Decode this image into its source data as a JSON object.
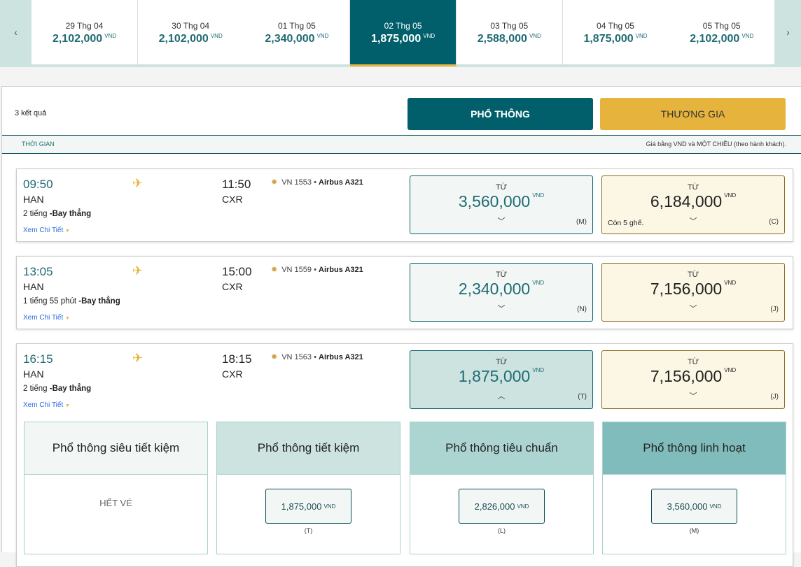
{
  "date_strip": {
    "prev_label": "‹",
    "next_label": "›",
    "dates": [
      {
        "date": "29 Thg 04",
        "price": "2,102,000",
        "currency": "VND"
      },
      {
        "date": "30 Thg 04",
        "price": "2,102,000",
        "currency": "VND"
      },
      {
        "date": "01 Thg 05",
        "price": "2,340,000",
        "currency": "VND"
      },
      {
        "date": "02 Thg 05",
        "price": "1,875,000",
        "currency": "VND",
        "selected": true
      },
      {
        "date": "03 Thg 05",
        "price": "2,588,000",
        "currency": "VND"
      },
      {
        "date": "04 Thg 05",
        "price": "1,875,000",
        "currency": "VND"
      },
      {
        "date": "05 Thg 05",
        "price": "2,102,000",
        "currency": "VND"
      }
    ]
  },
  "results": {
    "count_label": "3 kết quả",
    "economy_button": "PHỔ THÔNG",
    "business_button": "THƯƠNG GIA",
    "time_header": "THỜI GIAN",
    "price_note": "Giá bằng VND và MỘT CHIỀU (theo hành khách).",
    "colors": {
      "primary": "#005f6b",
      "gold": "#e6b43c"
    }
  },
  "flights": [
    {
      "dep_time": "09:50",
      "dep": "HAN",
      "arr_time": "11:50",
      "arr": "CXR",
      "duration": "2 tiếng",
      "type": "-Bay thẳng",
      "details": "Xem Chi Tiết",
      "flight_no": "VN 1553",
      "aircraft": "Airbus A321",
      "economy": {
        "from": "TỪ",
        "price": "3,560,000",
        "currency": "VND",
        "class": "(M)"
      },
      "business": {
        "from": "TỪ",
        "price": "6,184,000",
        "currency": "VND",
        "class": "(C)",
        "seats": "Còn 5 ghế."
      }
    },
    {
      "dep_time": "13:05",
      "dep": "HAN",
      "arr_time": "15:00",
      "arr": "CXR",
      "duration": "1 tiếng 55 phút",
      "type": "-Bay thẳng",
      "details": "Xem Chi Tiết",
      "flight_no": "VN 1559",
      "aircraft": "Airbus A321",
      "economy": {
        "from": "TỪ",
        "price": "2,340,000",
        "currency": "VND",
        "class": "(N)"
      },
      "business": {
        "from": "TỪ",
        "price": "7,156,000",
        "currency": "VND",
        "class": "(J)"
      }
    },
    {
      "dep_time": "16:15",
      "dep": "HAN",
      "arr_time": "18:15",
      "arr": "CXR",
      "duration": "2 tiếng",
      "type": "-Bay thẳng",
      "details": "Xem Chi Tiết",
      "flight_no": "VN 1563",
      "aircraft": "Airbus A321",
      "economy": {
        "from": "TỪ",
        "price": "1,875,000",
        "currency": "VND",
        "class": "(T)"
      },
      "business": {
        "from": "TỪ",
        "price": "7,156,000",
        "currency": "VND",
        "class": "(J)"
      }
    }
  ],
  "fares": [
    {
      "name": "Phổ thông siêu tiết kiệm",
      "sold_out": "HẾT VÉ",
      "color": "#f2f7f5"
    },
    {
      "name": "Phổ thông tiết kiệm",
      "price": "1,875,000",
      "currency": "VND",
      "class": "(T)",
      "color": "#cde3e0"
    },
    {
      "name": "Phổ thông tiêu chuẩn",
      "price": "2,826,000",
      "currency": "VND",
      "class": "(L)",
      "color": "#acd5d2"
    },
    {
      "name": "Phổ thông linh hoạt",
      "price": "3,560,000",
      "currency": "VND",
      "class": "(M)",
      "color": "#80bcbb"
    }
  ]
}
